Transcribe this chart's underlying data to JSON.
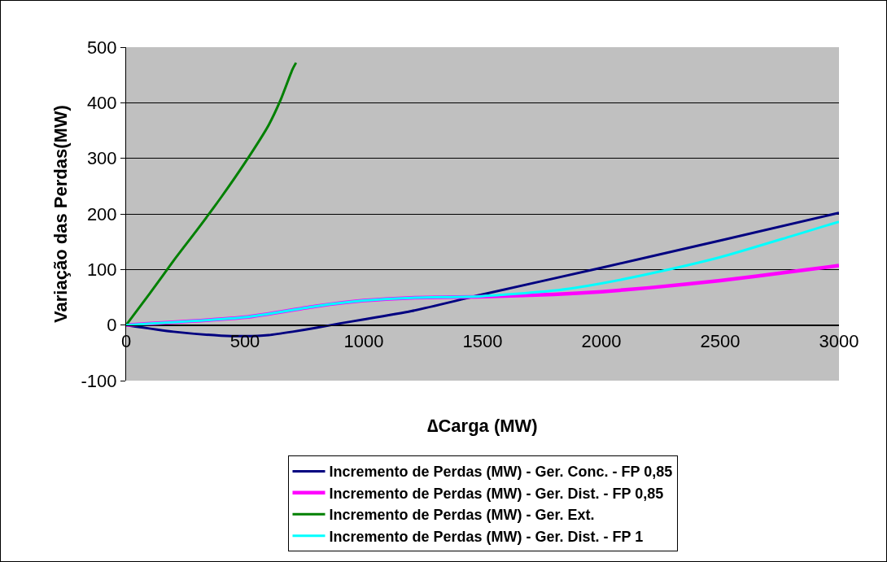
{
  "chart_data": {
    "type": "line",
    "xlabel": "∆Carga (MW)",
    "ylabel": "Variação das Perdas(MW)",
    "xlim": [
      0,
      3000
    ],
    "xticks": [
      0,
      500,
      1000,
      1500,
      2000,
      2500,
      3000
    ],
    "ylim": [
      -100,
      500
    ],
    "yticks": [
      -100,
      0,
      100,
      200,
      300,
      400,
      500
    ],
    "grid": "y",
    "legend": "bottom",
    "marker": "none",
    "line_style": "solid",
    "series": [
      {
        "name": "Incremento de Perdas (MW) - Ger. Conc. - FP 0,85",
        "color": "#000080",
        "x": [
          0,
          200,
          400,
          500,
          600,
          700,
          800,
          900,
          1000,
          1200,
          1500,
          2000,
          2500,
          3000
        ],
        "values": [
          0,
          -12,
          -19,
          -20,
          -18,
          -12,
          -5,
          3,
          10,
          25,
          55,
          103,
          152,
          202
        ]
      },
      {
        "name": "Incremento de Perdas (MW) - Ger. Dist. - FP 0,85",
        "color": "#ff00ff",
        "x": [
          0,
          500,
          800,
          1000,
          1200,
          1500,
          1800,
          2000,
          2200,
          2500,
          2800,
          3000
        ],
        "values": [
          0,
          14,
          34,
          44,
          49,
          51,
          55,
          60,
          67,
          80,
          96,
          107
        ]
      },
      {
        "name": "Incremento de Perdas (MW) - Ger. Ext.",
        "color": "#008000",
        "x": [
          0,
          100,
          200,
          300,
          400,
          500,
          600,
          650,
          700,
          715
        ],
        "values": [
          0,
          57,
          116,
          172,
          230,
          292,
          360,
          405,
          460,
          472
        ]
      },
      {
        "name": "Incremento de Perdas (MW) - Ger. Dist. - FP 1",
        "color": "#00ffff",
        "x": [
          0,
          500,
          800,
          1000,
          1200,
          1500,
          1800,
          2000,
          2200,
          2500,
          2800,
          3000
        ],
        "values": [
          0,
          14,
          34,
          44,
          49,
          52,
          62,
          75,
          92,
          122,
          160,
          186
        ]
      }
    ]
  }
}
